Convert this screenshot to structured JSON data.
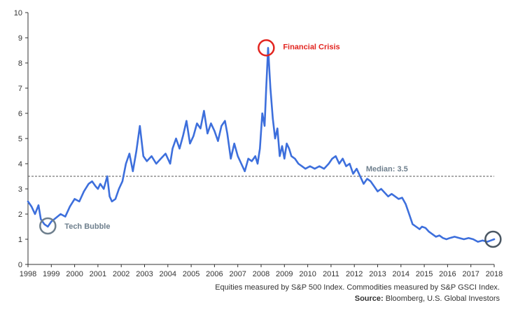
{
  "chart_data": {
    "type": "line",
    "title": "",
    "xlabel": "",
    "ylabel": "",
    "xlim": [
      1998.0,
      2018.0
    ],
    "ylim": [
      0,
      10
    ],
    "x_ticks": [
      "1998",
      "1999",
      "2000",
      "2001",
      "2002",
      "2003",
      "2004",
      "2005",
      "2006",
      "2007",
      "2008",
      "2009",
      "2010",
      "2011",
      "2012",
      "2013",
      "2014",
      "2015",
      "2016",
      "2017",
      "2018"
    ],
    "y_ticks": [
      "0",
      "1",
      "2",
      "3",
      "4",
      "5",
      "6",
      "7",
      "8",
      "9",
      "10"
    ],
    "grid": false,
    "series": [
      {
        "color": "#3d6fdc",
        "x": [
          1998.0,
          1998.15,
          1998.3,
          1998.45,
          1998.55,
          1998.7,
          1998.85,
          1999.0,
          1999.2,
          1999.4,
          1999.6,
          1999.8,
          2000.0,
          2000.2,
          2000.4,
          2000.6,
          2000.75,
          2000.9,
          2001.0,
          2001.1,
          2001.25,
          2001.4,
          2001.5,
          2001.6,
          2001.75,
          2001.9,
          2002.05,
          2002.2,
          2002.35,
          2002.5,
          2002.65,
          2002.8,
          2002.95,
          2003.1,
          2003.3,
          2003.5,
          2003.7,
          2003.9,
          2004.1,
          2004.2,
          2004.35,
          2004.5,
          2004.65,
          2004.8,
          2004.95,
          2005.1,
          2005.25,
          2005.4,
          2005.55,
          2005.7,
          2005.85,
          2006.0,
          2006.15,
          2006.3,
          2006.45,
          2006.55,
          2006.7,
          2006.85,
          2007.0,
          2007.15,
          2007.3,
          2007.45,
          2007.6,
          2007.75,
          2007.85,
          2007.95,
          2008.05,
          2008.15,
          2008.22,
          2008.3,
          2008.4,
          2008.5,
          2008.6,
          2008.7,
          2008.8,
          2008.9,
          2009.0,
          2009.1,
          2009.2,
          2009.3,
          2009.45,
          2009.6,
          2009.75,
          2009.9,
          2010.1,
          2010.3,
          2010.5,
          2010.7,
          2010.9,
          2011.05,
          2011.2,
          2011.35,
          2011.5,
          2011.65,
          2011.8,
          2011.95,
          2012.1,
          2012.25,
          2012.4,
          2012.55,
          2012.7,
          2012.85,
          2013.0,
          2013.15,
          2013.3,
          2013.45,
          2013.6,
          2013.75,
          2013.9,
          2014.05,
          2014.2,
          2014.35,
          2014.5,
          2014.65,
          2014.8,
          2014.9,
          2015.05,
          2015.2,
          2015.35,
          2015.5,
          2015.65,
          2015.8,
          2015.95,
          2016.1,
          2016.3,
          2016.5,
          2016.7,
          2016.9,
          2017.1,
          2017.3,
          2017.5,
          2017.7,
          2017.85,
          2018.0
        ],
        "y": [
          2.5,
          2.3,
          2.0,
          2.35,
          1.8,
          1.6,
          1.5,
          1.7,
          1.85,
          2.0,
          1.9,
          2.3,
          2.6,
          2.5,
          2.9,
          3.2,
          3.3,
          3.1,
          3.0,
          3.2,
          3.0,
          3.5,
          2.7,
          2.5,
          2.6,
          3.0,
          3.3,
          4.0,
          4.4,
          3.7,
          4.5,
          5.5,
          4.3,
          4.1,
          4.3,
          4.0,
          4.2,
          4.4,
          4.0,
          4.6,
          5.0,
          4.6,
          5.1,
          5.7,
          4.8,
          5.1,
          5.6,
          5.4,
          6.1,
          5.2,
          5.6,
          5.3,
          4.9,
          5.5,
          5.7,
          5.2,
          4.2,
          4.8,
          4.3,
          4.0,
          3.7,
          4.2,
          4.1,
          4.3,
          4.0,
          4.6,
          6.0,
          5.5,
          7.0,
          8.6,
          7.0,
          5.8,
          5.0,
          5.4,
          4.3,
          4.7,
          4.2,
          4.8,
          4.6,
          4.3,
          4.2,
          4.0,
          3.9,
          3.8,
          3.9,
          3.8,
          3.9,
          3.8,
          4.0,
          4.2,
          4.3,
          4.0,
          4.2,
          3.9,
          4.0,
          3.6,
          3.8,
          3.5,
          3.2,
          3.4,
          3.3,
          3.1,
          2.9,
          3.0,
          2.85,
          2.7,
          2.8,
          2.7,
          2.6,
          2.65,
          2.4,
          2.0,
          1.6,
          1.5,
          1.4,
          1.5,
          1.45,
          1.3,
          1.2,
          1.1,
          1.15,
          1.05,
          1.0,
          1.05,
          1.1,
          1.05,
          1.0,
          1.05,
          1.0,
          0.9,
          0.95,
          0.9,
          0.95,
          1.0
        ]
      }
    ],
    "reference_line": {
      "y": 3.5,
      "label": "Median: 3.5"
    },
    "annotations": [
      {
        "text": "Financial Crisis",
        "x": 2008.22,
        "y": 8.6,
        "color": "#e2241f"
      },
      {
        "text": "Tech Bubble",
        "x": 1998.85,
        "y": 1.5,
        "color": "#6e7f8d"
      },
      {
        "text": "",
        "x": 2017.95,
        "y": 1.0,
        "color": "#4a5763"
      }
    ]
  },
  "footnotes": {
    "line1": "Equities measured by S&P 500 Index. Commodities measured by S&P GSCI Index.",
    "source_label": "Source:",
    "source_text": " Bloomberg, U.S. Global Investors"
  }
}
